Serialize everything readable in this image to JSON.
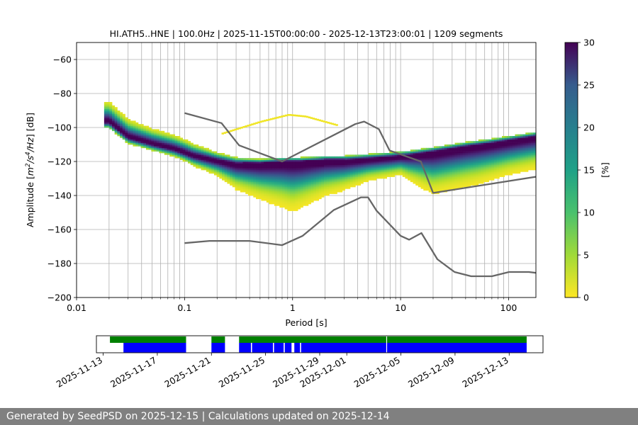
{
  "chart_data": [
    {
      "type": "heatmap",
      "title": "HI.ATH5..HNE | 100.0Hz | 2025-11-15T00:00:00 - 2025-12-13T23:00:01 | 1209 segments",
      "xlabel": "Period [s]",
      "ylabel_parts": [
        "Amplitude [",
        "m",
        "2",
        "/s",
        "4",
        "/Hz",
        "] [dB]"
      ],
      "xscale": "log",
      "xlim": [
        0.01,
        179
      ],
      "ylim": [
        -200,
        -50
      ],
      "xticks": [
        {
          "value": 0.01,
          "label": "0.01"
        },
        {
          "value": 0.1,
          "label": "0.1"
        },
        {
          "value": 1,
          "label": "1"
        },
        {
          "value": 10,
          "label": "10"
        },
        {
          "value": 100,
          "label": "100"
        }
      ],
      "yticks": [
        {
          "value": -60,
          "label": "−60"
        },
        {
          "value": -80,
          "label": "−80"
        },
        {
          "value": -100,
          "label": "−100"
        },
        {
          "value": -120,
          "label": "−120"
        },
        {
          "value": -140,
          "label": "−140"
        },
        {
          "value": -160,
          "label": "−160"
        },
        {
          "value": -180,
          "label": "−180"
        },
        {
          "value": -200,
          "label": "−200"
        }
      ],
      "grid": true,
      "colorbar": {
        "label": "[%]",
        "range": [
          0,
          30
        ],
        "colormap": "viridis_r",
        "ticks": [
          {
            "value": 0,
            "label": "0"
          },
          {
            "value": 5,
            "label": "5"
          },
          {
            "value": 10,
            "label": "10"
          },
          {
            "value": 15,
            "label": "15"
          },
          {
            "value": 20,
            "label": "20"
          },
          {
            "value": 25,
            "label": "25"
          },
          {
            "value": 30,
            "label": "30"
          }
        ]
      },
      "psd_distribution": {
        "mode_curve": [
          [
            0.02,
            -97
          ],
          [
            0.03,
            -106
          ],
          [
            0.05,
            -110
          ],
          [
            0.08,
            -113
          ],
          [
            0.12,
            -117
          ],
          [
            0.2,
            -120
          ],
          [
            0.3,
            -122
          ],
          [
            0.5,
            -122
          ],
          [
            0.8,
            -121
          ],
          [
            1.2,
            -121
          ],
          [
            2,
            -120
          ],
          [
            3,
            -120
          ],
          [
            5,
            -119
          ],
          [
            8,
            -118
          ],
          [
            12,
            -117
          ],
          [
            20,
            -115
          ],
          [
            40,
            -112
          ],
          [
            70,
            -110
          ],
          [
            179,
            -106
          ]
        ],
        "band_lower_db": [
          [
            0.02,
            11
          ],
          [
            0.05,
            8
          ],
          [
            0.1,
            7
          ],
          [
            0.2,
            4
          ],
          [
            0.5,
            2
          ],
          [
            2,
            2
          ],
          [
            10,
            2
          ],
          [
            100,
            2
          ],
          [
            179,
            2
          ]
        ],
        "band_upper_db": [
          [
            0.02,
            3
          ],
          [
            0.05,
            3
          ],
          [
            0.1,
            4
          ],
          [
            0.2,
            8
          ],
          [
            0.3,
            14
          ],
          [
            1,
            28
          ],
          [
            2,
            20
          ],
          [
            5,
            12
          ],
          [
            10,
            10
          ],
          [
            20,
            24
          ],
          [
            50,
            22
          ],
          [
            100,
            19
          ],
          [
            179,
            18
          ]
        ],
        "upper_arc": [
          [
            0.22,
            -104
          ],
          [
            0.5,
            -97
          ],
          [
            0.9,
            -93
          ],
          [
            1.3,
            -94
          ],
          [
            2.5,
            -99
          ]
        ],
        "color_peak": 30
      },
      "noise_models": [
        {
          "type": "line",
          "points": [
            [
              0.1,
              -91.5
            ],
            [
              0.22,
              -97.4
            ],
            [
              0.32,
              -110.5
            ],
            [
              0.8,
              -120
            ],
            [
              3.8,
              -98
            ],
            [
              4.6,
              -96.5
            ],
            [
              6.3,
              -101
            ],
            [
              7.9,
              -113.5
            ],
            [
              15.4,
              -120
            ],
            [
              20,
              -138.5
            ],
            [
              354.8,
              -126
            ]
          ]
        },
        {
          "type": "line",
          "points": [
            [
              0.1,
              -168
            ],
            [
              0.17,
              -166.7
            ],
            [
              0.4,
              -166.7
            ],
            [
              0.8,
              -169.2
            ],
            [
              1.24,
              -163.7
            ],
            [
              2.4,
              -148.6
            ],
            [
              4.3,
              -141.1
            ],
            [
              5,
              -141.1
            ],
            [
              6,
              -149
            ],
            [
              10,
              -163.7
            ],
            [
              12,
              -166
            ],
            [
              15.6,
              -162.1
            ],
            [
              21.9,
              -177.5
            ],
            [
              31.6,
              -185
            ],
            [
              45,
              -187.5
            ],
            [
              70,
              -187.5
            ],
            [
              101,
              -185
            ],
            [
              154,
              -185
            ],
            [
              328,
              -187.5
            ]
          ]
        }
      ]
    },
    {
      "type": "timeline",
      "xticks": [
        {
          "value": "2025-11-13",
          "label": "2025-11-13"
        },
        {
          "value": "2025-11-17",
          "label": "2025-11-17"
        },
        {
          "value": "2025-11-21",
          "label": "2025-11-21"
        },
        {
          "value": "2025-11-25",
          "label": "2025-11-25"
        },
        {
          "value": "2025-11-29",
          "label": "2025-11-29"
        },
        {
          "value": "2025-12-01",
          "label": "2025-12-01"
        },
        {
          "value": "2025-12-05",
          "label": "2025-12-05"
        },
        {
          "value": "2025-12-09",
          "label": "2025-12-09"
        },
        {
          "value": "2025-12-13",
          "label": "2025-12-13"
        }
      ],
      "xlim": [
        "2025-11-12T12:00",
        "2025-12-15T12:00"
      ],
      "colors": {
        "available": "#008000",
        "used": "#0000ff"
      },
      "available_segments": [
        [
          "2025-11-13T12:00",
          "2025-11-19T03:00"
        ],
        [
          "2025-11-21T00:00",
          "2025-11-22T00:00"
        ],
        [
          "2025-11-23T01:00",
          "2025-12-03T22:00"
        ],
        [
          "2025-12-03T23:30",
          "2025-12-14T07:00"
        ]
      ],
      "used_segments": [
        [
          "2025-11-14T12:00",
          "2025-11-19T03:00"
        ],
        [
          "2025-11-21T00:00",
          "2025-11-22T00:00"
        ],
        [
          "2025-11-23T01:00",
          "2025-11-23T22:00"
        ],
        [
          "2025-11-24T00:00",
          "2025-11-25T13:00"
        ],
        [
          "2025-11-25T15:00",
          "2025-11-26T08:00"
        ],
        [
          "2025-11-26T10:00",
          "2025-11-26T22:00"
        ],
        [
          "2025-11-27T03:00",
          "2025-11-27T13:00"
        ],
        [
          "2025-11-27T15:00",
          "2025-12-03T22:00"
        ],
        [
          "2025-12-03T23:30",
          "2025-12-14T07:00"
        ]
      ]
    }
  ],
  "footer": {
    "text": "Generated by SeedPSD on 2025-12-15 | Calculations updated on 2025-12-14"
  },
  "colors": {
    "grid": "#b0b0b0",
    "noise_model": "#666666",
    "footer_bg": "#808080",
    "footer_text": "#ffffff"
  }
}
